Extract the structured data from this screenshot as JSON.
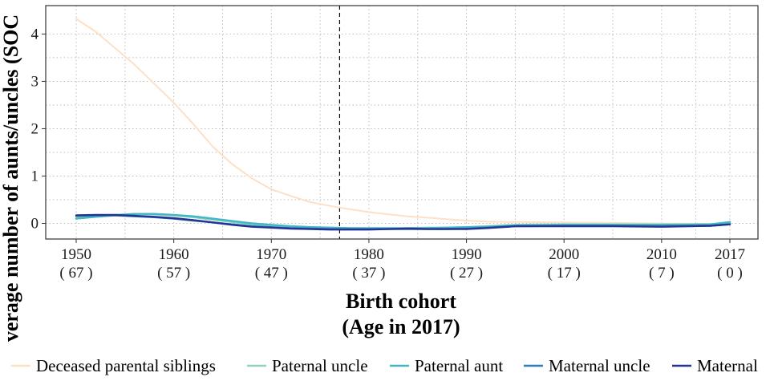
{
  "chart_data": {
    "type": "line",
    "xlabel_line1": "Birth cohort",
    "xlabel_line2": "(Age in 2017)",
    "ylabel": "verage number of aunts/uncles (SOC",
    "xlim": [
      1950,
      2017
    ],
    "ylim": [
      -0.33,
      4.6
    ],
    "x_ticks": [
      {
        "year": 1950,
        "year_label": "1950",
        "age_label": "( 67 )"
      },
      {
        "year": 1960,
        "year_label": "1960",
        "age_label": "( 57 )"
      },
      {
        "year": 1970,
        "year_label": "1970",
        "age_label": "( 47 )"
      },
      {
        "year": 1980,
        "year_label": "1980",
        "age_label": "( 37 )"
      },
      {
        "year": 1990,
        "year_label": "1990",
        "age_label": "( 27 )"
      },
      {
        "year": 2000,
        "year_label": "2000",
        "age_label": "( 17 )"
      },
      {
        "year": 2010,
        "year_label": "2010",
        "age_label": "( 7 )"
      },
      {
        "year": 2017,
        "year_label": "2017",
        "age_label": "( 0 )"
      }
    ],
    "y_ticks": [
      {
        "value": 0,
        "label": "0"
      },
      {
        "value": 1,
        "label": "1"
      },
      {
        "value": 2,
        "label": "2"
      },
      {
        "value": 3,
        "label": "3"
      },
      {
        "value": 4,
        "label": "4"
      }
    ],
    "vline_x": 1977,
    "grid": true,
    "legend_position": "bottom",
    "series": [
      {
        "name": "Deceased parental siblings",
        "color": "#fde0c5",
        "x": [
          1950,
          1952,
          1954,
          1956,
          1958,
          1960,
          1962,
          1964,
          1966,
          1968,
          1970,
          1972,
          1974,
          1976,
          1978,
          1980,
          1982,
          1984,
          1986,
          1988,
          1990,
          1992,
          1995,
          2000,
          2005,
          2010,
          2015,
          2017
        ],
        "y": [
          4.32,
          4.05,
          3.7,
          3.35,
          2.95,
          2.55,
          2.1,
          1.62,
          1.25,
          0.95,
          0.72,
          0.58,
          0.45,
          0.37,
          0.3,
          0.24,
          0.19,
          0.15,
          0.12,
          0.09,
          0.06,
          0.04,
          0.03,
          0.02,
          0.01,
          0.0,
          -0.01,
          0.0
        ]
      },
      {
        "name": "Paternal uncle",
        "color": "#8fd3bc",
        "x": [
          1950,
          1952,
          1954,
          1956,
          1958,
          1960,
          1962,
          1964,
          1966,
          1968,
          1970,
          1972,
          1974,
          1976,
          1978,
          1980,
          1982,
          1984,
          1986,
          1988,
          1990,
          1992,
          1995,
          2000,
          2005,
          2010,
          2015,
          2017
        ],
        "y": [
          0.14,
          0.16,
          0.18,
          0.2,
          0.19,
          0.17,
          0.13,
          0.08,
          0.03,
          -0.02,
          -0.04,
          -0.06,
          -0.08,
          -0.09,
          -0.1,
          -0.11,
          -0.11,
          -0.1,
          -0.09,
          -0.09,
          -0.08,
          -0.06,
          -0.03,
          -0.02,
          -0.02,
          -0.02,
          -0.02,
          0.01
        ]
      },
      {
        "name": "Paternal aunt",
        "color": "#41b6c4",
        "x": [
          1950,
          1952,
          1954,
          1956,
          1958,
          1960,
          1962,
          1964,
          1966,
          1968,
          1970,
          1972,
          1974,
          1976,
          1978,
          1980,
          1982,
          1984,
          1986,
          1988,
          1990,
          1992,
          1995,
          2000,
          2005,
          2010,
          2015,
          2017
        ],
        "y": [
          0.1,
          0.14,
          0.17,
          0.2,
          0.2,
          0.18,
          0.15,
          0.1,
          0.05,
          0.0,
          -0.03,
          -0.06,
          -0.08,
          -0.09,
          -0.1,
          -0.1,
          -0.1,
          -0.1,
          -0.1,
          -0.09,
          -0.08,
          -0.07,
          -0.04,
          -0.03,
          -0.03,
          -0.03,
          -0.02,
          0.03
        ]
      },
      {
        "name": "Maternal uncle",
        "color": "#2c7fb8",
        "x": [
          1950,
          1952,
          1954,
          1956,
          1958,
          1960,
          1962,
          1964,
          1966,
          1968,
          1970,
          1972,
          1974,
          1976,
          1978,
          1980,
          1982,
          1984,
          1986,
          1988,
          1990,
          1992,
          1995,
          2000,
          2005,
          2010,
          2015,
          2017
        ],
        "y": [
          0.16,
          0.17,
          0.17,
          0.15,
          0.13,
          0.1,
          0.06,
          0.02,
          -0.02,
          -0.06,
          -0.08,
          -0.1,
          -0.11,
          -0.12,
          -0.12,
          -0.12,
          -0.12,
          -0.12,
          -0.12,
          -0.12,
          -0.11,
          -0.09,
          -0.06,
          -0.05,
          -0.05,
          -0.06,
          -0.05,
          -0.02
        ]
      },
      {
        "name": "Maternal",
        "color": "#253494",
        "x": [
          1950,
          1952,
          1954,
          1956,
          1958,
          1960,
          1962,
          1964,
          1966,
          1968,
          1970,
          1972,
          1974,
          1976,
          1978,
          1980,
          1982,
          1984,
          1986,
          1988,
          1990,
          1992,
          1995,
          2000,
          2005,
          2010,
          2015,
          2017
        ],
        "y": [
          0.17,
          0.18,
          0.18,
          0.16,
          0.14,
          0.11,
          0.07,
          0.02,
          -0.03,
          -0.07,
          -0.09,
          -0.11,
          -0.12,
          -0.13,
          -0.13,
          -0.13,
          -0.12,
          -0.11,
          -0.12,
          -0.12,
          -0.12,
          -0.1,
          -0.06,
          -0.06,
          -0.06,
          -0.07,
          -0.05,
          -0.02
        ]
      }
    ]
  }
}
